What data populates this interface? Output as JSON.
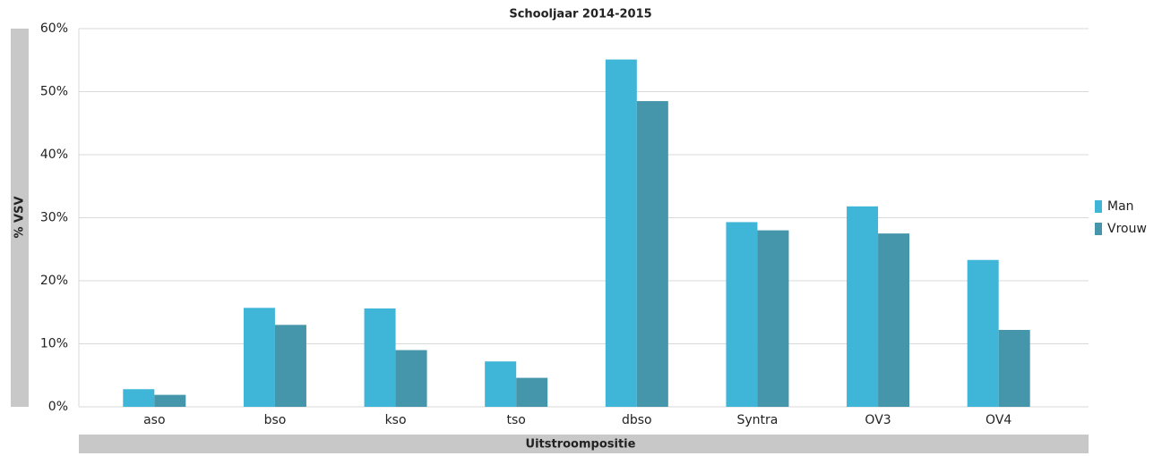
{
  "chart_data": {
    "type": "bar",
    "title": "Schooljaar 2014-2015",
    "x_label": "Uitstroompositie",
    "y_label": "% VSV",
    "categories": [
      "aso",
      "bso",
      "kso",
      "tso",
      "dbso",
      "Syntra",
      "OV3",
      "OV4"
    ],
    "series": [
      {
        "name": "Man",
        "color": "#3fb5d7",
        "values": [
          2.8,
          15.7,
          15.6,
          7.2,
          55.1,
          29.3,
          31.8,
          23.3
        ]
      },
      {
        "name": "Vrouw",
        "color": "#4595ab",
        "values": [
          1.9,
          13.0,
          9.0,
          4.6,
          48.5,
          28.0,
          27.5,
          12.2
        ]
      }
    ],
    "ylim": [
      0,
      60
    ],
    "yticks": [
      {
        "value": 0,
        "label": "0%"
      },
      {
        "value": 10,
        "label": "10%"
      },
      {
        "value": 20,
        "label": "20%"
      },
      {
        "value": 30,
        "label": "30%"
      },
      {
        "value": 40,
        "label": "40%"
      },
      {
        "value": 50,
        "label": "50%"
      },
      {
        "value": 60,
        "label": "60%"
      }
    ],
    "grid": true,
    "legend": "right"
  }
}
